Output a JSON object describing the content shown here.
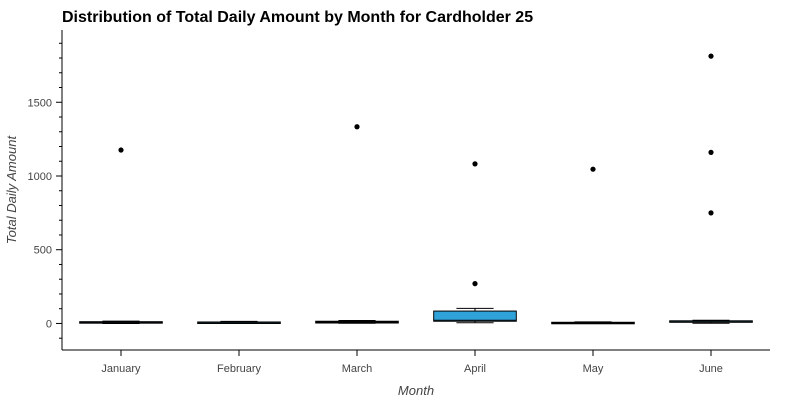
{
  "chart_data": {
    "type": "box",
    "title": "Distribution of Total Daily Amount by Month for Cardholder 25",
    "xlabel": "Month",
    "ylabel": "Total Daily Amount",
    "categories": [
      "January",
      "February",
      "March",
      "April",
      "May",
      "June"
    ],
    "ylim": [
      -180,
      1990
    ],
    "yticks": [
      0,
      500,
      1000,
      1500
    ],
    "yticks_minor_step": 100,
    "grid": false,
    "box_color": "#30a2da",
    "outlier_color": "#000000",
    "boxes": [
      {
        "category": "January",
        "whisker_low": 0,
        "q1": 2,
        "median": 7,
        "q3": 12,
        "whisker_high": 16,
        "outliers": [
          1176
        ]
      },
      {
        "category": "February",
        "whisker_low": 1,
        "q1": 3,
        "median": 7,
        "q3": 10,
        "whisker_high": 14,
        "outliers": []
      },
      {
        "category": "March",
        "whisker_low": 1,
        "q1": 3,
        "median": 10,
        "q3": 15,
        "whisker_high": 20,
        "outliers": [
          1334
        ]
      },
      {
        "category": "April",
        "whisker_low": 5,
        "q1": 15,
        "median": 22,
        "q3": 84,
        "whisker_high": 102,
        "outliers": [
          270,
          1082
        ]
      },
      {
        "category": "May",
        "whisker_low": 0,
        "q1": 1,
        "median": 3,
        "q3": 8,
        "whisker_high": 11,
        "outliers": [
          1046
        ]
      },
      {
        "category": "June",
        "whisker_low": 1,
        "q1": 12,
        "median": 15,
        "q3": 18,
        "whisker_high": 22,
        "outliers": [
          750,
          1160,
          1813
        ]
      }
    ]
  }
}
